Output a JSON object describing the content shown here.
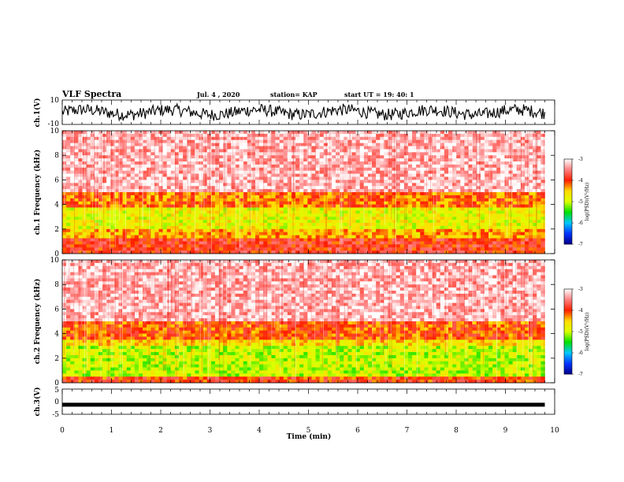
{
  "header": {
    "title": "VLF Spectra",
    "date": "Jul. 4 , 2020",
    "station": "station= KAP",
    "start": "start UT = 19: 40: 1"
  },
  "chart_data": [
    {
      "type": "line",
      "panel": "ch1-waveform",
      "ylabel": "ch.1(V)",
      "ylim": [
        -10,
        10
      ],
      "ytick_labels": [
        "10",
        "-10"
      ],
      "xlim": [
        0,
        10
      ],
      "x_data_end": 9.8,
      "description_of_series": "noisy waveform oscillating roughly between -5 and 5 V",
      "series": [
        {
          "values_approx_range": [
            -6,
            6
          ]
        }
      ]
    },
    {
      "type": "heatmap",
      "panel": "ch1-spectrogram",
      "ylabel": "ch.1 Frequency (kHz)",
      "ylim": [
        0,
        10
      ],
      "ytick_labels": [
        "0",
        "2",
        "4",
        "6",
        "8",
        "10"
      ],
      "xlim": [
        0,
        10
      ],
      "x_data_end": 9.8,
      "bands_khz": [
        {
          "from": 0,
          "to": 1.2,
          "level": -3.9
        },
        {
          "from": 1.2,
          "to": 2.0,
          "level": -4.4
        },
        {
          "from": 2.0,
          "to": 3.8,
          "level": -4.8
        },
        {
          "from": 3.8,
          "to": 5.0,
          "level": -4.2
        },
        {
          "from": 5.0,
          "to": 10,
          "level": -3.3
        }
      ],
      "colorbar": {
        "label": "log(PSD)(V²/Hz)",
        "ticks": [
          "-3",
          "-4",
          "-5",
          "-6",
          "-7"
        ],
        "range": [
          -7,
          -3
        ]
      }
    },
    {
      "type": "heatmap",
      "panel": "ch2-spectrogram",
      "ylabel": "ch.2 Frequency (kHz)",
      "ylim": [
        0,
        10
      ],
      "ytick_labels": [
        "0",
        "2",
        "4",
        "6",
        "8",
        "10"
      ],
      "xlim": [
        0,
        10
      ],
      "x_data_end": 9.8,
      "bands_khz": [
        {
          "from": 0,
          "to": 0.5,
          "level": -4.0
        },
        {
          "from": 0.5,
          "to": 3.0,
          "level": -5.0
        },
        {
          "from": 3.0,
          "to": 3.6,
          "level": -4.6
        },
        {
          "from": 3.6,
          "to": 5.0,
          "level": -4.1
        },
        {
          "from": 5.0,
          "to": 10,
          "level": -3.3
        }
      ],
      "colorbar": {
        "label": "log(PSD)(V²/Hz)",
        "ticks": [
          "-3",
          "-4",
          "-5",
          "-6",
          "-7"
        ],
        "range": [
          -7,
          -3
        ]
      }
    },
    {
      "type": "line",
      "panel": "ch3-waveform",
      "ylabel": "ch.3(V)",
      "ylim": [
        -5,
        5
      ],
      "ytick_labels": [
        "5",
        "0",
        "-5"
      ],
      "xlim": [
        0,
        10
      ],
      "x_data_end": 9.8,
      "series": [
        {
          "constant_value_approx": -1.2
        }
      ]
    }
  ],
  "xaxis": {
    "label": "Time (min)",
    "ticks": [
      "0",
      "1",
      "2",
      "3",
      "4",
      "5",
      "6",
      "7",
      "8",
      "9",
      "10"
    ]
  },
  "colors": {
    "colormap": [
      "#00008b",
      "#0033ff",
      "#00c8ff",
      "#00e000",
      "#dcff00",
      "#ffdc00",
      "#ff1e00",
      "#ff8080",
      "#ffffff"
    ]
  }
}
